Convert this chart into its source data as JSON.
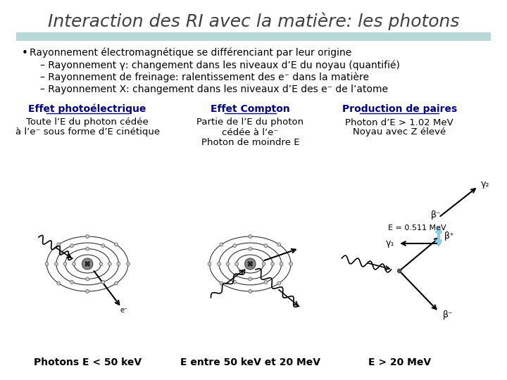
{
  "title": "Interaction des RI avec la matière: les photons",
  "bg_color": "#ffffff",
  "title_color": "#404040",
  "title_fontsize": 18,
  "header_bar_color": "#b8d8d8",
  "bullet_lines": [
    "Rayonnement électromagnétique se différenciant par leur origine",
    "– Rayonnement γ: changement dans les niveaux d’E du noyau (quantifié)",
    "– Rayonnement de freinage: ralentissement des e⁻ dans la matière",
    "– Rayonnement X: changement dans les niveaux d’E des e⁻ de l’atome"
  ],
  "col_headers": [
    "Effet photoélectrique",
    "Effet Compton",
    "Production de paires"
  ],
  "col_header_color": "#000080",
  "col_desc1": [
    "Toute l’E du photon cédée",
    "à l’e⁻ sous forme d’E cinétique"
  ],
  "col_desc2": [
    "Partie de l’E du photon",
    "cédée à l’e⁻",
    "Photon de moindre E"
  ],
  "col_desc3": [
    "Photon d’E > 1.02 MeV",
    "Noyau avec Z élevé"
  ],
  "footer1": "Photons E < 50 keV",
  "footer2": "E entre 50 keV et 20 MeV",
  "footer3": "E > 20 MeV",
  "text_color": "#000000",
  "underline_color": "#000080"
}
